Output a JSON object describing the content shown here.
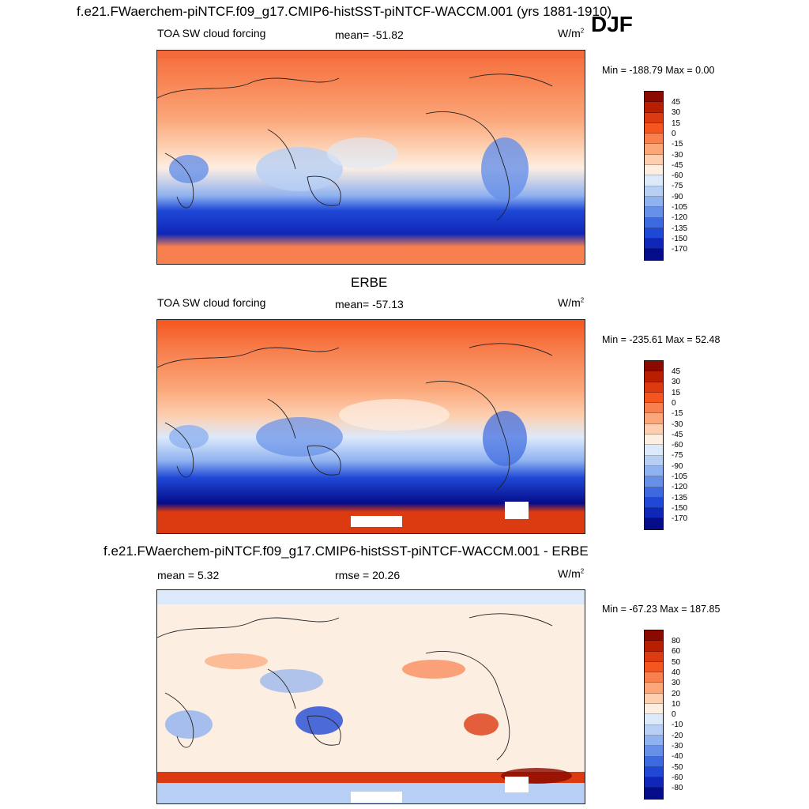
{
  "page": {
    "title": "f.e21.FWaerchem-piNTCF.f09_g17.CMIP6-histSST-piNTCF-WACCM.001 (yrs 1881-1910)",
    "season": "DJF"
  },
  "panels": [
    {
      "heading": "",
      "left_label": "TOA SW cloud forcing",
      "center_label": "mean= -51.82",
      "units": "W/m",
      "units_sup": "2",
      "minmax": "Min = -188.79 Max =   0.00",
      "colorbar_labels": [
        "45",
        "30",
        "15",
        "0",
        "-15",
        "-30",
        "-45",
        "-60",
        "-75",
        "-90",
        "-105",
        "-120",
        "-135",
        "-150",
        "-170"
      ],
      "colorbar_colors": [
        "#8b0a00",
        "#b81e00",
        "#dc3a10",
        "#f5561f",
        "#f8804f",
        "#fba679",
        "#fdcfb0",
        "#fdeee2",
        "#dce9fb",
        "#b8cff5",
        "#8fb2f0",
        "#6690e8",
        "#3c69e0",
        "#1f48d6",
        "#0f26b8",
        "#050c8a"
      ]
    },
    {
      "heading": "ERBE",
      "left_label": "TOA SW cloud forcing",
      "center_label": "mean= -57.13",
      "units": "W/m",
      "units_sup": "2",
      "minmax": "Min = -235.61 Max =  52.48",
      "colorbar_labels": [
        "45",
        "30",
        "15",
        "0",
        "-15",
        "-30",
        "-45",
        "-60",
        "-75",
        "-90",
        "-105",
        "-120",
        "-135",
        "-150",
        "-170"
      ],
      "colorbar_colors": [
        "#8b0a00",
        "#b81e00",
        "#dc3a10",
        "#f5561f",
        "#f8804f",
        "#fba679",
        "#fdcfb0",
        "#fdeee2",
        "#dce9fb",
        "#b8cff5",
        "#8fb2f0",
        "#6690e8",
        "#3c69e0",
        "#1f48d6",
        "#0f26b8",
        "#050c8a"
      ]
    },
    {
      "heading": "f.e21.FWaerchem-piNTCF.f09_g17.CMIP6-histSST-piNTCF-WACCM.001 - ERBE",
      "left_label": "mean =   5.32",
      "center_label": "rmse =  20.26",
      "units": "W/m",
      "units_sup": "2",
      "minmax": "Min = -67.23 Max = 187.85",
      "colorbar_labels": [
        "80",
        "60",
        "50",
        "40",
        "30",
        "20",
        "10",
        "0",
        "-10",
        "-20",
        "-30",
        "-40",
        "-50",
        "-60",
        "-80"
      ],
      "colorbar_colors": [
        "#8b0a00",
        "#b81e00",
        "#dc3a10",
        "#f5561f",
        "#f8804f",
        "#fba679",
        "#fdcfb0",
        "#fdeee2",
        "#dce9fb",
        "#b8cff5",
        "#8fb2f0",
        "#6690e8",
        "#3c69e0",
        "#1f48d6",
        "#0f26b8",
        "#050c8a"
      ]
    }
  ]
}
